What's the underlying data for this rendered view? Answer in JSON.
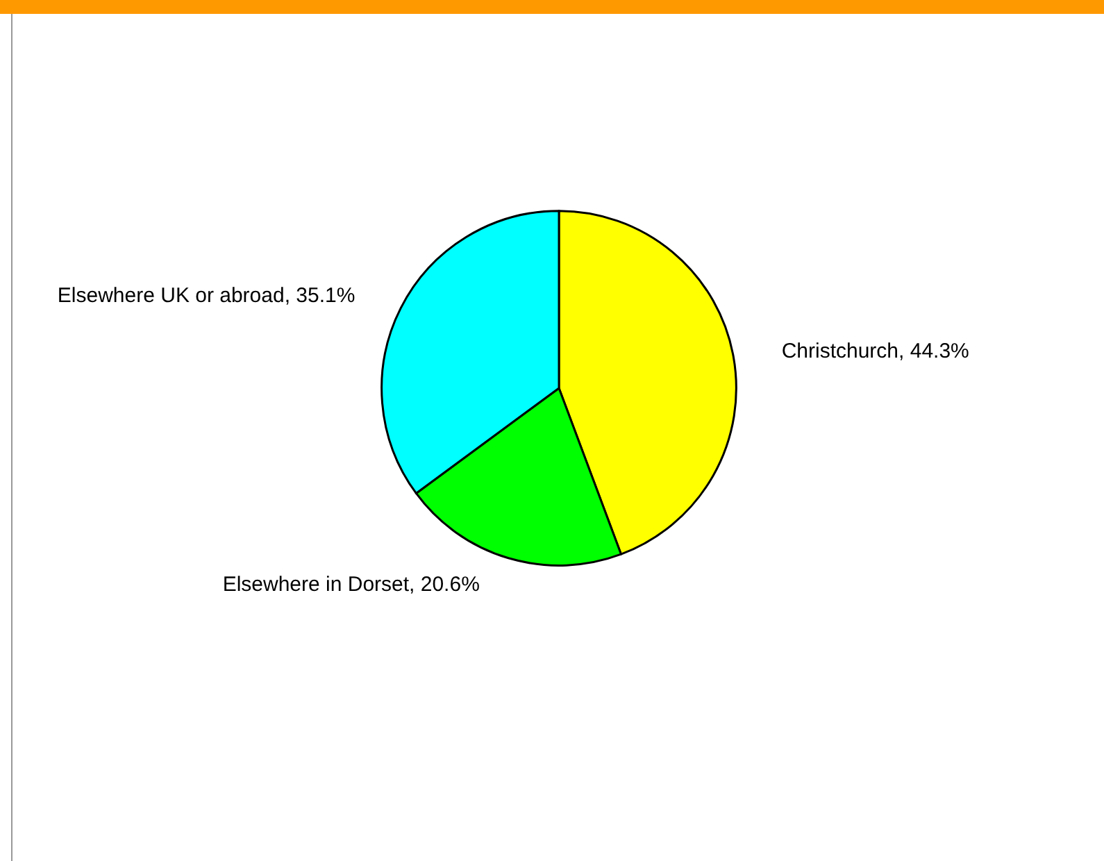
{
  "chart_data": {
    "type": "pie",
    "categories": [
      "Christchurch",
      "Elsewhere in Dorset",
      "Elsewhere UK or abroad"
    ],
    "values": [
      44.3,
      20.6,
      35.1
    ],
    "colors": [
      "#ffff00",
      "#00ff00",
      "#00ffff"
    ],
    "value_labels": [
      "44.3%",
      "20.6%",
      "35.1%"
    ],
    "legend": false
  }
}
